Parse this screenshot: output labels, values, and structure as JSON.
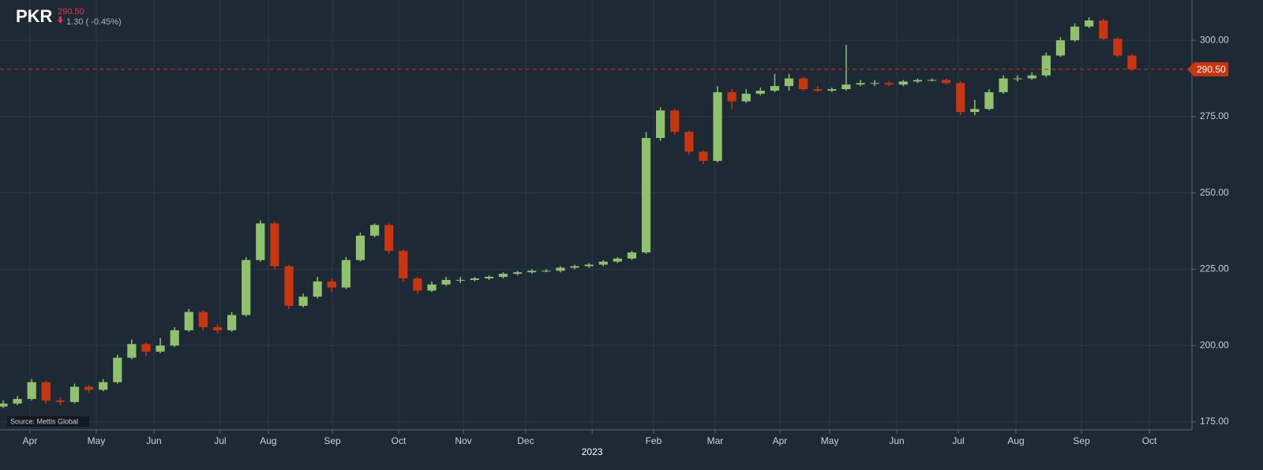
{
  "chart_data": {
    "type": "candlestick",
    "title": "PKR",
    "last_price": {
      "value": 290.5,
      "label": "290.50"
    },
    "change_text": "1.30 ( -0.45%)",
    "source": "Source: Mettis Global",
    "up_color": "#8fc26a",
    "down_color": "#c8350f",
    "grid": true,
    "x": [
      0,
      1,
      2,
      3,
      4,
      5,
      6,
      7,
      8,
      9,
      10,
      11,
      12,
      13,
      14,
      15,
      16,
      17,
      18,
      19,
      20,
      21,
      22,
      23,
      24,
      25,
      26,
      27,
      28,
      29,
      30,
      31,
      32,
      33,
      34,
      35,
      36,
      37,
      38,
      39,
      40,
      41,
      42,
      43,
      44,
      45,
      46,
      47,
      48,
      49,
      50,
      51,
      52,
      53,
      54,
      55,
      56,
      57,
      58,
      59,
      60,
      61,
      62,
      63,
      64,
      65,
      66,
      67,
      68,
      69,
      70,
      71,
      72,
      73,
      74,
      75,
      76,
      77,
      78,
      79
    ],
    "open": [
      180,
      181,
      182.5,
      188,
      182,
      181.5,
      186.5,
      185.5,
      188,
      196,
      200.5,
      198,
      200,
      205,
      211,
      206,
      205,
      210,
      228,
      240,
      226,
      213,
      216,
      221,
      219,
      228,
      236,
      239.5,
      231,
      222,
      218,
      220,
      221.5,
      221.5,
      222,
      222.5,
      223.5,
      224,
      224.5,
      224.5,
      225.5,
      226,
      226.5,
      227.5,
      228.5,
      230.5,
      268,
      277,
      270,
      263.5,
      260.5,
      283,
      280,
      282.5,
      283.5,
      285,
      287.5,
      284,
      283.5,
      284,
      285.5,
      286,
      286,
      285.5,
      286.5,
      287,
      287,
      286,
      276.5,
      277.5,
      283,
      287.5,
      287.5,
      288.5,
      295,
      300,
      304.5,
      306.5,
      300.5,
      295
    ],
    "high": [
      182,
      183.5,
      189,
      188.5,
      183,
      187.5,
      187,
      189,
      197,
      202,
      201,
      202.5,
      206,
      212,
      211.5,
      207,
      211,
      229,
      241,
      240.5,
      226.5,
      217,
      222.5,
      222,
      229,
      237,
      240,
      240,
      231.5,
      222.5,
      221,
      222.5,
      222.5,
      222.5,
      223,
      224,
      224.5,
      225,
      225,
      226,
      226.5,
      227,
      228,
      229,
      231,
      270,
      278,
      277.5,
      270.5,
      264,
      285,
      284,
      284,
      284.5,
      289,
      289,
      288,
      285,
      284.5,
      298.5,
      287,
      287,
      286.5,
      287,
      287.5,
      287.5,
      287.5,
      286.5,
      280.5,
      284,
      288.5,
      288.5,
      289.5,
      296,
      301,
      305.5,
      307.5,
      307,
      301,
      295.5
    ],
    "low": [
      179.5,
      180.5,
      182,
      181,
      180.5,
      181,
      184.5,
      185,
      187.5,
      195.5,
      196.5,
      197.5,
      199.5,
      204.5,
      205,
      204,
      204.5,
      209.5,
      227.5,
      225,
      212,
      212.5,
      215.5,
      217.5,
      218.5,
      227.5,
      235.5,
      230,
      221,
      217,
      217.5,
      219.5,
      220.5,
      221,
      221.5,
      222,
      223,
      223.5,
      224,
      224,
      225,
      225.5,
      226,
      227,
      228,
      230,
      267,
      269,
      262.5,
      259.5,
      260,
      277.5,
      279.5,
      282,
      283,
      283.5,
      283.5,
      283,
      283,
      283.5,
      285,
      285,
      285,
      285,
      286,
      286.5,
      285.5,
      275.5,
      275.5,
      277,
      282.5,
      286.5,
      287,
      288,
      294.5,
      299.5,
      304,
      300,
      294.5,
      290
    ],
    "close": [
      181,
      182.5,
      188,
      182,
      181.5,
      186.5,
      185.5,
      188,
      196,
      200.5,
      198,
      200,
      205,
      211,
      206,
      205,
      210,
      228,
      240,
      226,
      213,
      216,
      221,
      219,
      228,
      236,
      239.5,
      231,
      222,
      218,
      220,
      221.5,
      221.5,
      222,
      222.5,
      223.5,
      224,
      224.5,
      224.5,
      225.5,
      226,
      226.5,
      227.5,
      228.5,
      230.5,
      268,
      277,
      270,
      263.5,
      260.5,
      283,
      280,
      282.5,
      283.5,
      285,
      287.5,
      284,
      283.5,
      284,
      285.5,
      286,
      286,
      285.5,
      286.5,
      287,
      287,
      286,
      276.5,
      277.5,
      283,
      287.5,
      287.5,
      288.5,
      295,
      300,
      304.5,
      306.5,
      300.5,
      295,
      290.5
    ],
    "xlim": [
      -0.22,
      83.2
    ],
    "xticks": [
      {
        "value": 1.88,
        "label": "Apr"
      },
      {
        "value": 6.52,
        "label": "May"
      },
      {
        "value": 10.55,
        "label": "Jun"
      },
      {
        "value": 15.19,
        "label": "Jul"
      },
      {
        "value": 18.56,
        "label": "Aug"
      },
      {
        "value": 23.04,
        "label": "Sep"
      },
      {
        "value": 27.68,
        "label": "Oct"
      },
      {
        "value": 32.21,
        "label": "Nov"
      },
      {
        "value": 36.57,
        "label": "Dec"
      },
      {
        "value": 41.22,
        "label": "2023"
      },
      {
        "value": 45.52,
        "label": "Feb"
      },
      {
        "value": 49.83,
        "label": "Mar"
      },
      {
        "value": 54.36,
        "label": "Apr"
      },
      {
        "value": 57.85,
        "label": "May"
      },
      {
        "value": 62.54,
        "label": "Jun"
      },
      {
        "value": 66.85,
        "label": "Jul"
      },
      {
        "value": 70.88,
        "label": "Aug"
      },
      {
        "value": 75.47,
        "label": "Sep"
      },
      {
        "value": 80.22,
        "label": "Oct"
      }
    ],
    "ylim": [
      172.4,
      313.2
    ],
    "yticks": [
      {
        "value": 175,
        "label": "175.00"
      },
      {
        "value": 200,
        "label": "200.00"
      },
      {
        "value": 225,
        "label": "225.00"
      },
      {
        "value": 250,
        "label": "250.00"
      },
      {
        "value": 275,
        "label": "275.00"
      },
      {
        "value": 300,
        "label": "300.00"
      }
    ]
  }
}
